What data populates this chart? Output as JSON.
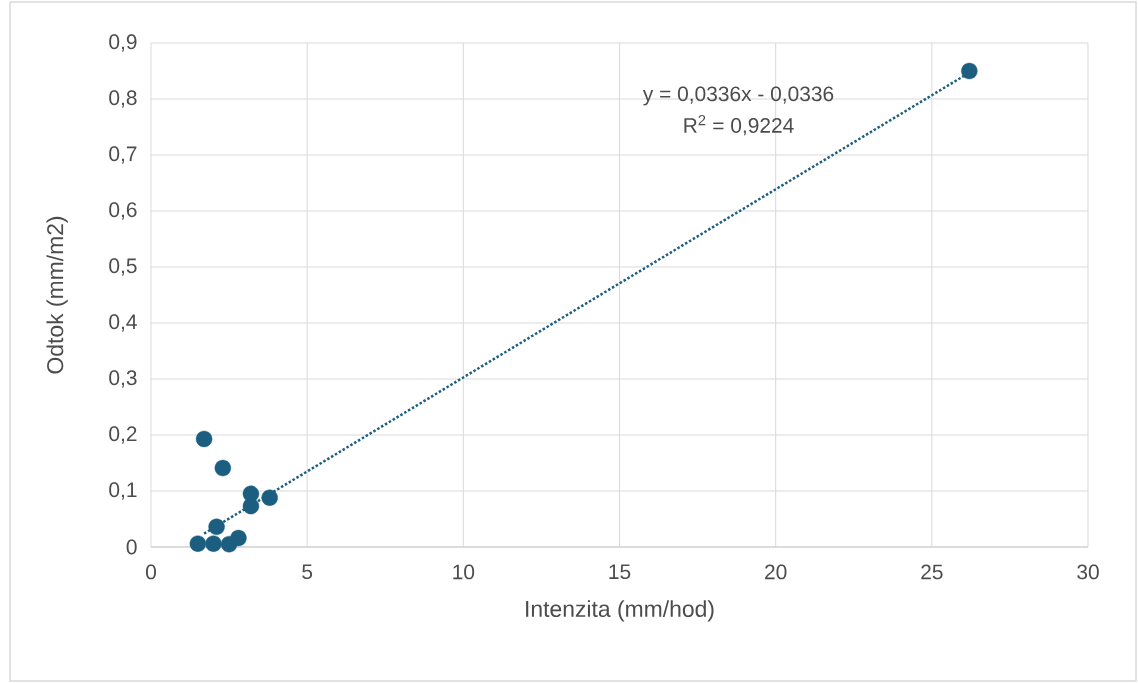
{
  "chart_data": {
    "type": "scatter",
    "xlabel": "Intenzita (mm/hod)",
    "ylabel": "Odtok (mm/m2)",
    "xlim": [
      0,
      30
    ],
    "xticks": [
      0,
      5,
      10,
      15,
      20,
      25,
      30
    ],
    "ylim": [
      0,
      0.9
    ],
    "yticks": [
      0,
      {
        "value": 0.1,
        "label": "0,1"
      },
      {
        "value": 0.2,
        "label": "0,2"
      },
      {
        "value": 0.3,
        "label": "0,3"
      },
      {
        "value": 0.4,
        "label": "0,4"
      },
      {
        "value": 0.5,
        "label": "0,5"
      },
      {
        "value": 0.6,
        "label": "0,6"
      },
      {
        "value": 0.7,
        "label": "0,7"
      },
      {
        "value": 0.8,
        "label": "0,8"
      },
      {
        "value": 0.9,
        "label": "0,9"
      }
    ],
    "grid": true,
    "series": [
      {
        "marker": "circle",
        "color": "#1b5e80",
        "x": [
          1.7,
          2.3,
          3.2,
          3.2,
          3.8,
          2.1,
          1.5,
          2.0,
          2.5,
          2.8,
          26.2
        ],
        "values": [
          0.193,
          0.141,
          0.095,
          0.073,
          0.088,
          0.036,
          0.006,
          0.006,
          0.005,
          0.016,
          0.85
        ]
      },
      {
        "type": "line",
        "line_style": "dotted",
        "marker": "none",
        "color": "#1b5e80",
        "x": [
          1.7,
          26.2
        ],
        "values": [
          0.024,
          0.847
        ]
      }
    ],
    "annotations": [
      "y = 0,0336x - 0,0336",
      "R$^{2}$ = 0,9224"
    ]
  }
}
